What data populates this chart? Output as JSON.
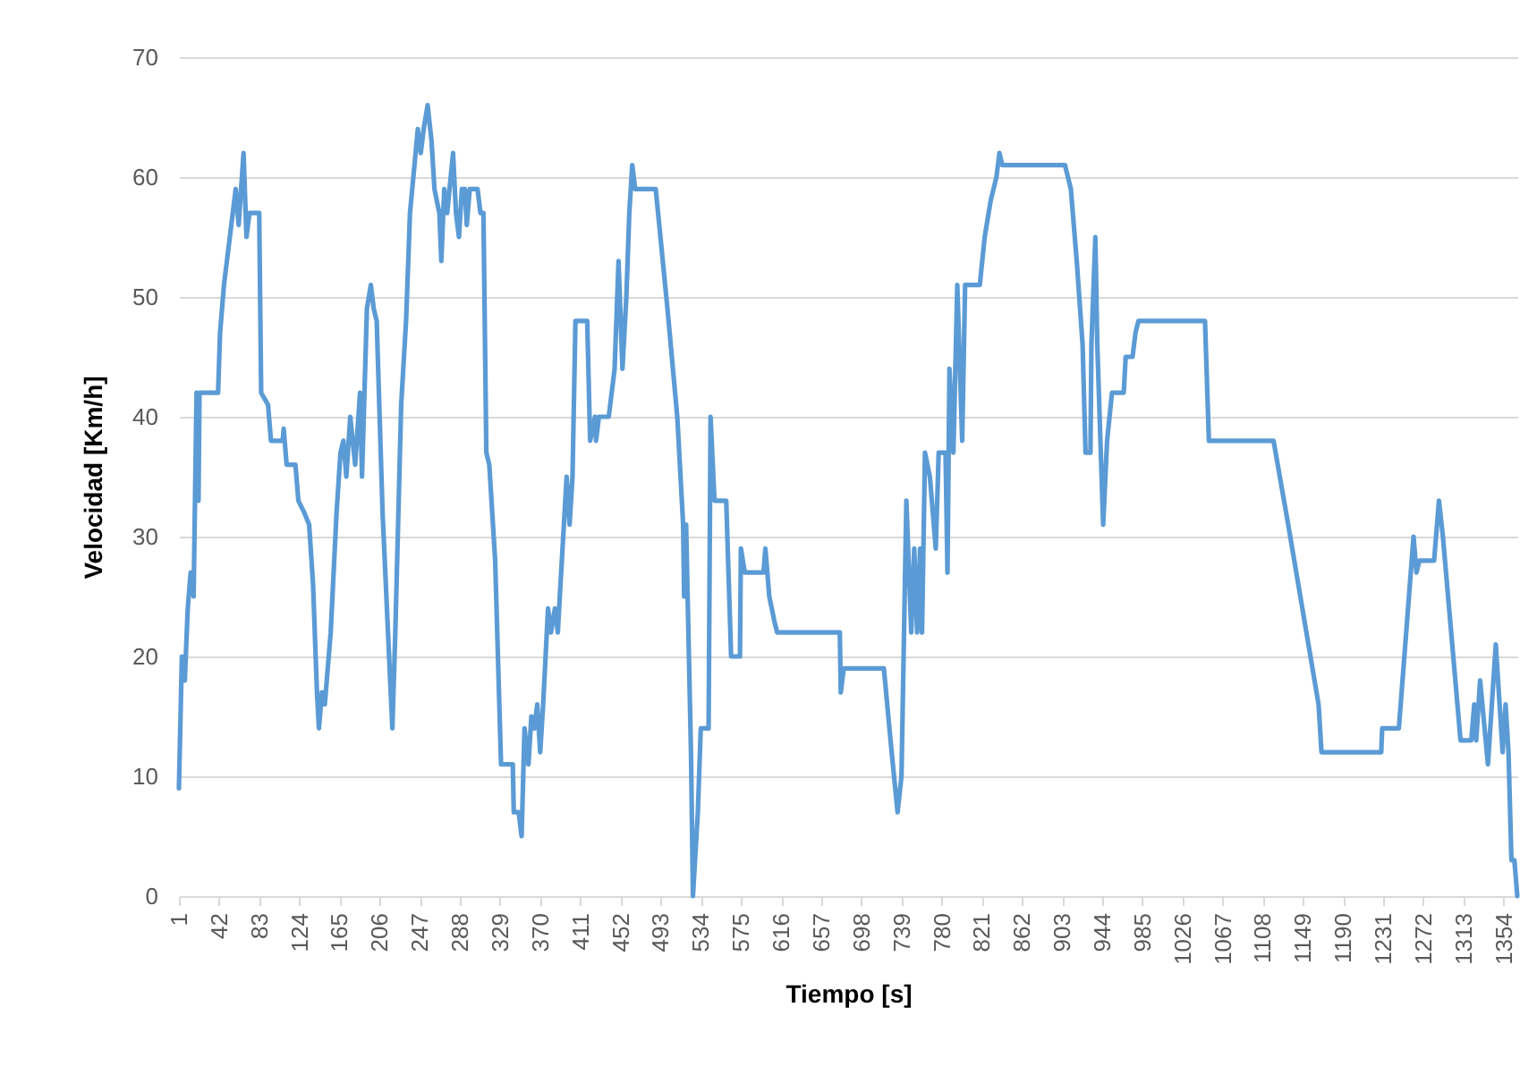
{
  "chart_data": {
    "type": "line",
    "xlabel": "Tiempo [s]",
    "ylabel": "Velocidad [Km/h]",
    "x": [
      1,
      4,
      7,
      10,
      13,
      16,
      19,
      21,
      22,
      41,
      43,
      47,
      56,
      59,
      62,
      67,
      70,
      73,
      83,
      85,
      92,
      95,
      107,
      108,
      111,
      120,
      123,
      129,
      134,
      138,
      142,
      144,
      147,
      150,
      156,
      162,
      166,
      169,
      172,
      176,
      181,
      186,
      188,
      193,
      197,
      200,
      203,
      209,
      219,
      222,
      228,
      233,
      237,
      245,
      248,
      251,
      255,
      259,
      262,
      267,
      269,
      272,
      275,
      281,
      284,
      287,
      290,
      293,
      295,
      298,
      306,
      309,
      312,
      315,
      318,
      324,
      330,
      342,
      343,
      348,
      351,
      354,
      358,
      361,
      364,
      367,
      370,
      373,
      378,
      381,
      385,
      388,
      390,
      397,
      400,
      403,
      406,
      418,
      421,
      426,
      427,
      430,
      440,
      446,
      450,
      454,
      458,
      461,
      464,
      467,
      488,
      500,
      510,
      516,
      517,
      519,
      524,
      526,
      531,
      534,
      542,
      544,
      548,
      560,
      565,
      574,
      575,
      579,
      598,
      600,
      604,
      609,
      612,
      676,
      677,
      680,
      721,
      729,
      735,
      739,
      744,
      749,
      752,
      755,
      758,
      760,
      763,
      768,
      774,
      777,
      784,
      786,
      788,
      792,
      796,
      801,
      804,
      819,
      824,
      830,
      836,
      839,
      842,
      906,
      912,
      918,
      924,
      927,
      932,
      933,
      937,
      939,
      945,
      949,
      954,
      966,
      968,
      975,
      978,
      981,
      1049,
      1053,
      1119,
      1134,
      1165,
      1168,
      1229,
      1230,
      1247,
      1262,
      1265,
      1268,
      1283,
      1288,
      1292,
      1310,
      1321,
      1324,
      1326,
      1330,
      1338,
      1346,
      1353,
      1356,
      1359,
      1362,
      1365,
      1368
    ],
    "series": [
      {
        "color": "#5b9bd5",
        "values": [
          9,
          20,
          18,
          24,
          27,
          25,
          42,
          33,
          42,
          42,
          47,
          51,
          57,
          59,
          56,
          62,
          55,
          57,
          57,
          42,
          41,
          38,
          38,
          39,
          36,
          36,
          33,
          32,
          31,
          26,
          17,
          14,
          17,
          16,
          22,
          32,
          37,
          38,
          35,
          40,
          36,
          42,
          35,
          49,
          51,
          49,
          48,
          32,
          14,
          22,
          41,
          48,
          57,
          64,
          62,
          64,
          66,
          63,
          59,
          57,
          53,
          59,
          57,
          62,
          57,
          55,
          59,
          59,
          56,
          59,
          59,
          57,
          57,
          37,
          36,
          28,
          11,
          11,
          7,
          7,
          5,
          14,
          11,
          15,
          14,
          16,
          12,
          16,
          24,
          22,
          24,
          22,
          25,
          35,
          31,
          35,
          48,
          48,
          38,
          40,
          38,
          40,
          40,
          44,
          53,
          44,
          50,
          57,
          61,
          59,
          59,
          49,
          40,
          31,
          25,
          31,
          12,
          0,
          7,
          14,
          14,
          40,
          33,
          33,
          20,
          20,
          29,
          27,
          27,
          29,
          25,
          23,
          22,
          22,
          17,
          19,
          19,
          12,
          7,
          10,
          33,
          22,
          29,
          22,
          29,
          22,
          37,
          35,
          29,
          37,
          37,
          27,
          44,
          37,
          51,
          38,
          51,
          51,
          55,
          58,
          60,
          62,
          61,
          61,
          59,
          53,
          46,
          37,
          37,
          46,
          55,
          46,
          31,
          38,
          42,
          42,
          45,
          45,
          47,
          48,
          48,
          38,
          38,
          31,
          16,
          12,
          12,
          14,
          14,
          30,
          27,
          28,
          28,
          33,
          30,
          13,
          13,
          16,
          13,
          18,
          11,
          21,
          12,
          16,
          12,
          3,
          3,
          0
        ]
      }
    ],
    "xlim": [
      1,
      1368
    ],
    "xticks": [
      1,
      42,
      83,
      124,
      165,
      206,
      247,
      288,
      329,
      370,
      411,
      452,
      493,
      534,
      575,
      616,
      657,
      698,
      739,
      780,
      821,
      862,
      903,
      944,
      985,
      1026,
      1067,
      1108,
      1149,
      1190,
      1231,
      1272,
      1313,
      1354
    ],
    "ylim": [
      0,
      70
    ],
    "yticks": [
      0,
      10,
      20,
      30,
      40,
      50,
      60,
      70
    ],
    "grid": "y",
    "marker": "none",
    "line_style": "solid"
  }
}
